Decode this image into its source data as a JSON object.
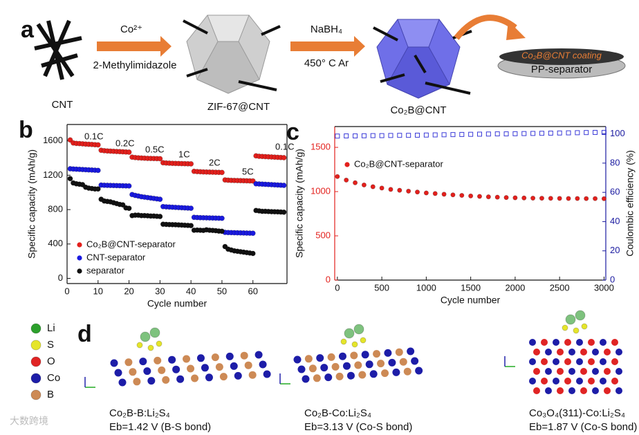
{
  "panel_a": {
    "label": "a",
    "cnt_label": "CNT",
    "reagent_1": "Co²⁺",
    "reagent_2": "2-Methylimidazole",
    "zif_label": "ZIF-67@CNT",
    "reagent_3": "NaBH₄",
    "condition": "450° C Ar",
    "product_label": "Co₂B@CNT",
    "coating_label": "Co₂B@CNT coating",
    "separator_label": "PP-separator"
  },
  "chart_data": [
    {
      "type": "scatter",
      "panel_label": "b",
      "x_label": "Cycle number",
      "y_label": "Specific capacity (mAh/g)",
      "xlim": [
        0,
        71
      ],
      "ylim": [
        -60,
        1790
      ],
      "xticks": [
        0,
        10,
        20,
        30,
        40,
        50,
        60
      ],
      "yticks": [
        0,
        400,
        800,
        1200,
        1600
      ],
      "legend": "lower left",
      "annotations": [
        "0.1C",
        "0.2C",
        "0.5C",
        "1C",
        "2C",
        "5C",
        "0.1C"
      ],
      "x": [
        1,
        2,
        3,
        4,
        5,
        6,
        7,
        8,
        9,
        10,
        11,
        12,
        13,
        14,
        15,
        16,
        17,
        18,
        19,
        20,
        21,
        22,
        23,
        24,
        25,
        26,
        27,
        28,
        29,
        30,
        31,
        32,
        33,
        34,
        35,
        36,
        37,
        38,
        39,
        40,
        41,
        42,
        43,
        44,
        45,
        46,
        47,
        48,
        49,
        50,
        51,
        52,
        53,
        54,
        55,
        56,
        57,
        58,
        59,
        60,
        61,
        62,
        63,
        64,
        65,
        66,
        67,
        68,
        69,
        70
      ],
      "series": [
        {
          "name": "Co₂B@CNT-separator",
          "color": "#e3201c",
          "marker": "circle",
          "values": [
            1610,
            1575,
            1570,
            1568,
            1565,
            1562,
            1560,
            1558,
            1555,
            1553,
            1490,
            1485,
            1482,
            1480,
            1478,
            1476,
            1474,
            1472,
            1470,
            1468,
            1410,
            1405,
            1402,
            1400,
            1398,
            1396,
            1395,
            1394,
            1393,
            1392,
            1345,
            1342,
            1340,
            1338,
            1337,
            1336,
            1335,
            1334,
            1333,
            1332,
            1245,
            1242,
            1240,
            1238,
            1237,
            1236,
            1235,
            1234,
            1233,
            1232,
            1145,
            1142,
            1140,
            1139,
            1138,
            1137,
            1136,
            1135,
            1134,
            1133,
            1425,
            1420,
            1418,
            1416,
            1414,
            1412,
            1410,
            1408,
            1406,
            1404
          ]
        },
        {
          "name": "CNT-separator",
          "color": "#1a1ae0",
          "marker": "circle",
          "values": [
            1275,
            1272,
            1270,
            1268,
            1266,
            1264,
            1262,
            1260,
            1258,
            1256,
            1085,
            1083,
            1082,
            1081,
            1080,
            1079,
            1078,
            1077,
            1076,
            1075,
            975,
            965,
            958,
            950,
            945,
            940,
            935,
            930,
            925,
            920,
            835,
            832,
            830,
            828,
            826,
            824,
            822,
            820,
            818,
            816,
            710,
            708,
            706,
            705,
            704,
            703,
            702,
            701,
            700,
            699,
            535,
            533,
            532,
            531,
            530,
            529,
            528,
            527,
            526,
            525,
            1100,
            1098,
            1096,
            1094,
            1092,
            1090,
            1088,
            1086,
            1084,
            1082
          ]
        },
        {
          "name": "separator",
          "color": "#111111",
          "marker": "circle",
          "values": [
            1160,
            1110,
            1100,
            1095,
            1090,
            1060,
            1050,
            1045,
            1040,
            1040,
            920,
            900,
            895,
            890,
            880,
            870,
            860,
            855,
            820,
            815,
            730,
            735,
            735,
            730,
            730,
            728,
            725,
            725,
            722,
            720,
            630,
            628,
            626,
            625,
            624,
            622,
            620,
            618,
            616,
            614,
            560,
            562,
            560,
            558,
            565,
            560,
            558,
            555,
            550,
            548,
            370,
            340,
            330,
            320,
            315,
            310,
            305,
            300,
            295,
            290,
            790,
            785,
            780,
            780,
            778,
            776,
            775,
            774,
            772,
            770
          ]
        }
      ]
    },
    {
      "type": "scatter",
      "panel_label": "c",
      "x_label": "Cycle number",
      "y_label": "Specific capacity (mAh/g)",
      "y2_label": "Coulombic efficiency (%)",
      "xlim": [
        -30,
        3020
      ],
      "ylim": [
        0,
        1735
      ],
      "y2lim": [
        0,
        105
      ],
      "xticks": [
        0,
        500,
        1000,
        1500,
        2000,
        2500,
        3000
      ],
      "yticks": [
        0,
        500,
        1000,
        1500
      ],
      "y2ticks": [
        0,
        20,
        40,
        60,
        80,
        100
      ],
      "legend": "upper left",
      "y_color": "#e3201c",
      "y2_color": "#1a1aa0",
      "x": [
        0,
        100,
        200,
        300,
        400,
        500,
        600,
        700,
        800,
        900,
        1000,
        1100,
        1200,
        1300,
        1400,
        1500,
        1600,
        1700,
        1800,
        1900,
        2000,
        2100,
        2200,
        2300,
        2400,
        2500,
        2600,
        2700,
        2800,
        2900,
        3000
      ],
      "series": [
        {
          "name": "Co₂B@CNT-separator",
          "color": "#e3201c",
          "marker": "circle",
          "values": [
            1170,
            1130,
            1100,
            1075,
            1055,
            1040,
            1025,
            1015,
            1005,
            995,
            985,
            978,
            970,
            963,
            957,
            951,
            946,
            941,
            937,
            933,
            930,
            928,
            926,
            925,
            924,
            923,
            922,
            922,
            921,
            921,
            920
          ]
        },
        {
          "color": "#3a3ad8",
          "marker": "square-open",
          "axis": "y2",
          "values": [
            98.5,
            98.6,
            98.6,
            98.7,
            98.8,
            98.8,
            98.9,
            99,
            99,
            99.1,
            99.2,
            99.3,
            99.4,
            99.5,
            99.6,
            99.7,
            99.8,
            99.9,
            100,
            100,
            100.1,
            100.2,
            100.3,
            100.4,
            100.5,
            100.6,
            100.7,
            100.8,
            100.9,
            101,
            101
          ]
        }
      ]
    }
  ],
  "panel_d": {
    "label": "d",
    "legend": [
      "Li",
      "S",
      "O",
      "Co",
      "B"
    ],
    "structures": [
      {
        "name": "Co₂B-B:Li₂S₄",
        "energy": "Eb=1.42 V (B-S bond)"
      },
      {
        "name": "Co₂B-Co:Li₂S₄",
        "energy": "Eb=3.13 V (Co-S bond)"
      },
      {
        "name": "Co₃O₄(311)-Co:Li₂S₄",
        "energy": "Eb=1.87 V (Co-S bond)"
      }
    ]
  },
  "watermark": "大数跨境"
}
